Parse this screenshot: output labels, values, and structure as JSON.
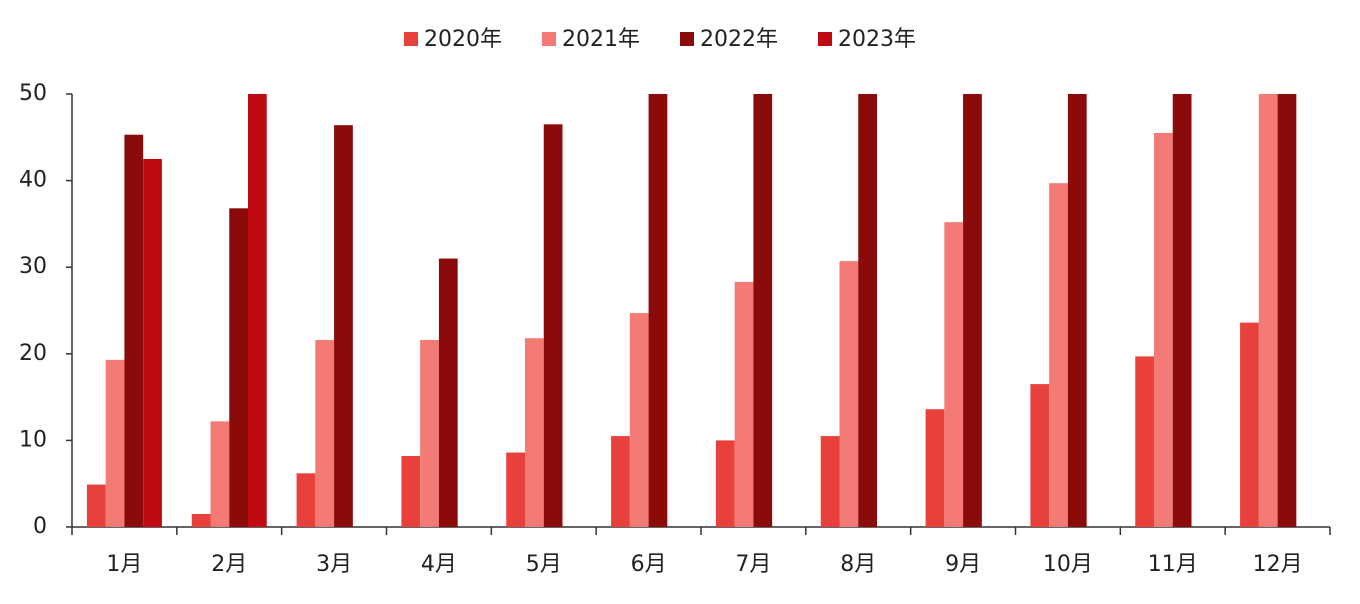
{
  "chart_data": {
    "type": "bar",
    "categories": [
      "1月",
      "2月",
      "3月",
      "4月",
      "5月",
      "6月",
      "7月",
      "8月",
      "9月",
      "10月",
      "11月",
      "12月"
    ],
    "series": [
      {
        "name": "2020年",
        "color": "#e8403a",
        "values": [
          4.9,
          1.5,
          6.2,
          8.2,
          8.6,
          10.5,
          10.0,
          10.5,
          13.6,
          16.5,
          19.7,
          23.6
        ]
      },
      {
        "name": "2021年",
        "color": "#f47a76",
        "values": [
          19.3,
          12.2,
          21.6,
          21.6,
          21.8,
          24.7,
          28.3,
          30.7,
          35.2,
          39.7,
          45.5,
          50
        ]
      },
      {
        "name": "2022年",
        "color": "#8b0a0a",
        "values": [
          45.3,
          36.8,
          46.4,
          31.0,
          46.5,
          50,
          50,
          50,
          50,
          50,
          50,
          50
        ]
      },
      {
        "name": "2023年",
        "color": "#c00a12",
        "values": [
          42.5,
          50,
          null,
          null,
          null,
          null,
          null,
          null,
          null,
          null,
          null,
          null
        ]
      }
    ],
    "ylim": [
      0,
      50
    ],
    "yticks": [
      0,
      10,
      20,
      30,
      40,
      50
    ],
    "grid": false,
    "legend": "top"
  }
}
